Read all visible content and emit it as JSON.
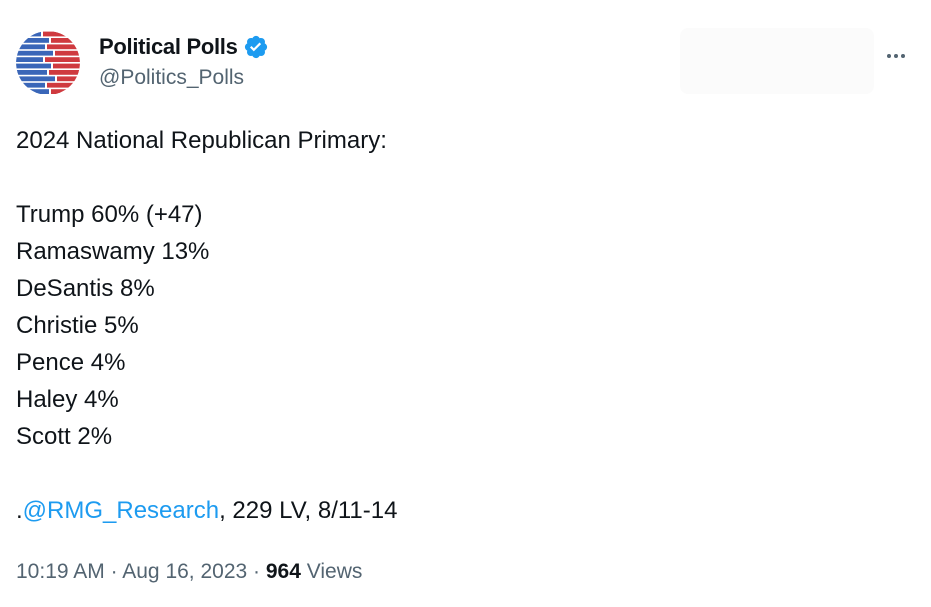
{
  "author": {
    "display_name": "Political Polls",
    "handle": "@Politics_Polls",
    "verified": true,
    "avatar_icon": "red-blue-bars-logo-icon"
  },
  "more_icon": "ellipsis-icon",
  "tweet": {
    "headline": "2024 National Republican Primary:",
    "results": [
      {
        "text": "Trump 60% (+47)"
      },
      {
        "text": "Ramaswamy 13%"
      },
      {
        "text": "DeSantis 8%"
      },
      {
        "text": "Christie 5%"
      },
      {
        "text": "Pence 4%"
      },
      {
        "text": "Haley 4%"
      },
      {
        "text": "Scott 2%"
      }
    ],
    "source_prefix": ".",
    "source_mention": "@RMG_Research",
    "source_suffix": ", 229 LV, 8/11-14"
  },
  "meta": {
    "time": "10:19 AM",
    "separator": " · ",
    "date": "Aug 16, 2023",
    "views_count": "964",
    "views_label": "Views"
  },
  "colors": {
    "accent": "#1d9bf0",
    "secondary_text": "#536471",
    "primary_text": "#0f1419",
    "logo_blue": "#3a66b8",
    "logo_red": "#cf3a3f"
  }
}
